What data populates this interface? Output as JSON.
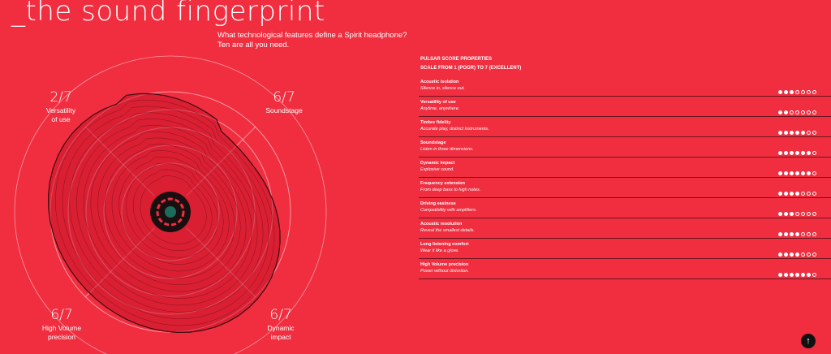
{
  "page": {
    "title": "_the sound fingerprint",
    "intro_line1": "What technological features define a Spirit headphone?",
    "intro_line2": "Ten are all you need."
  },
  "chart_labels": [
    {
      "score": "2/7",
      "name1": "Versatility",
      "name2": "of use"
    },
    {
      "score": "6/7",
      "name1": "Soundstage",
      "name2": ""
    },
    {
      "score": "6/7",
      "name1": "High Volume",
      "name2": "precision"
    },
    {
      "score": "6/7",
      "name1": "Dynamic",
      "name2": "impact"
    }
  ],
  "properties": {
    "heading1": "PULSAR SCORE PROPERTIES",
    "heading2": "SCALE FROM 1 (POOR) TO 7 (EXCELLENT)",
    "max": 7,
    "items": [
      {
        "name": "Acoustic isolation",
        "desc": "Silence in, silence out.",
        "score": 3
      },
      {
        "name": "Versatility of use",
        "desc": "Anytime, anywhere.",
        "score": 2
      },
      {
        "name": "Timbre fidelity",
        "desc": "Accurate play, distinct instruments.",
        "score": 5
      },
      {
        "name": "Soundstage",
        "desc": "Listen in three dimensions.",
        "score": 6
      },
      {
        "name": "Dynamic impact",
        "desc": "Explosive sound.",
        "score": 6
      },
      {
        "name": "Frequency extension",
        "desc": "From deep bass to high notes.",
        "score": 4
      },
      {
        "name": "Driving easiness",
        "desc": "Compatibility with amplifiers.",
        "score": 3
      },
      {
        "name": "Acoustic resolution",
        "desc": "Reveal the smallest details.",
        "score": 4
      },
      {
        "name": "Long listening comfort",
        "desc": "Wear it like a glove.",
        "score": 4
      },
      {
        "name": "High Volume precision",
        "desc": "Power without distortion.",
        "score": 6
      }
    ]
  },
  "icons": {
    "scroll_top": "arrow-up-icon"
  },
  "colors": {
    "background": "#f02e40",
    "accent": "#ffffff",
    "dark": "#111111"
  }
}
